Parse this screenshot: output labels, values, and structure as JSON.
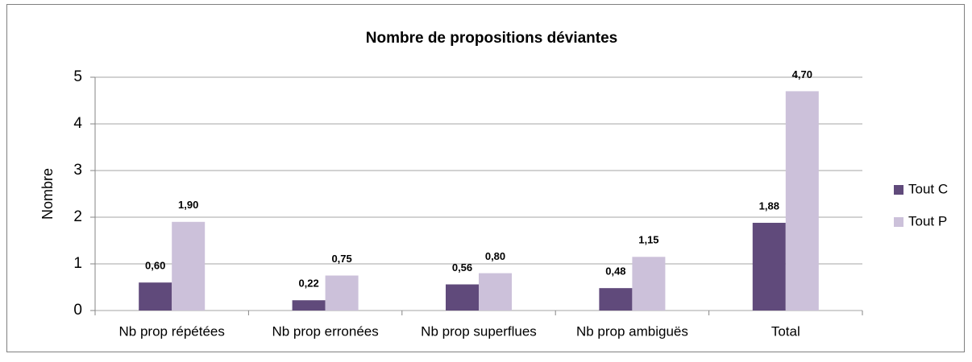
{
  "chart_data": {
    "type": "bar",
    "title": "Nombre de propositions déviantes",
    "y_label": "Nombre",
    "categories": [
      "Nb prop répétées",
      "Nb prop erronées",
      "Nb prop superflues",
      "Nb prop ambiguës",
      "Total"
    ],
    "series": [
      {
        "name": "Tout C",
        "color": "#604a7b",
        "values": [
          0.6,
          0.22,
          0.56,
          0.48,
          1.88
        ],
        "value_labels": [
          "0,60",
          "0,22",
          "0,56",
          "0,48",
          "1,88"
        ]
      },
      {
        "name": "Tout P",
        "color": "#ccc1da",
        "values": [
          1.9,
          0.75,
          0.8,
          1.15,
          4.7
        ],
        "value_labels": [
          "1,90",
          "0,75",
          "0,80",
          "1,15",
          "4,70"
        ]
      }
    ],
    "ylim": [
      0,
      5
    ],
    "yticks": [
      0,
      1,
      2,
      3,
      4,
      5
    ],
    "grid": true,
    "legend": "right"
  }
}
